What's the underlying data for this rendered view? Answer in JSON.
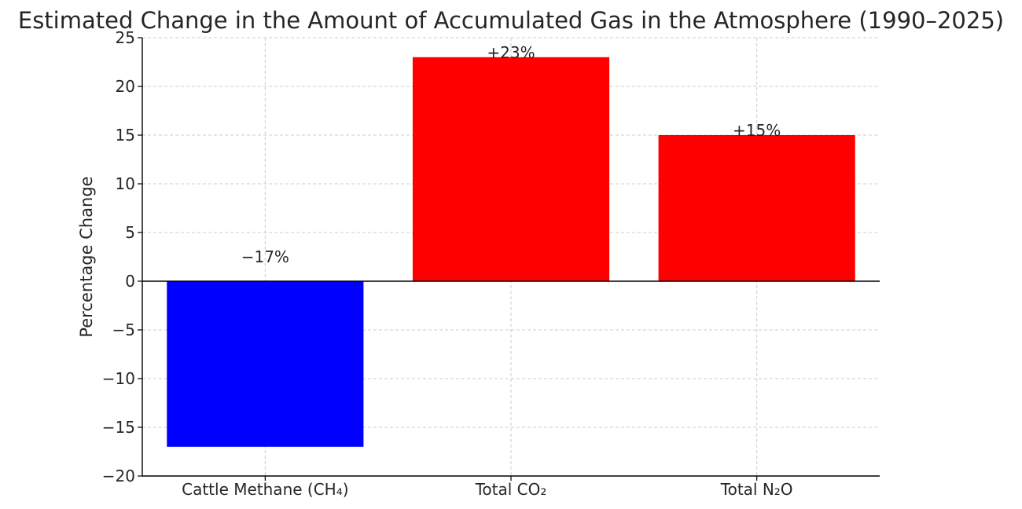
{
  "chart_data": {
    "type": "bar",
    "title": "Estimated Change in the Amount of Accumulated Gas in the Atmosphere (1990–2025)",
    "xlabel": "",
    "ylabel": "Percentage Change",
    "categories": [
      "Cattle Methane (CH₄)",
      "Total CO₂",
      "Total N₂O"
    ],
    "values": [
      -17,
      23,
      15
    ],
    "data_labels": [
      "−17%",
      "+23%",
      "+15%"
    ],
    "bar_colors": [
      "#0000ff",
      "#ff0000",
      "#ff0000"
    ],
    "ylim": [
      -20,
      25
    ],
    "yticks": [
      -20,
      -15,
      -10,
      -5,
      0,
      5,
      10,
      15,
      20,
      25
    ],
    "ytick_labels": [
      "−20",
      "−15",
      "−10",
      "−5",
      "0",
      "5",
      "10",
      "15",
      "20",
      "25"
    ],
    "grid": true,
    "zero_line": true
  }
}
